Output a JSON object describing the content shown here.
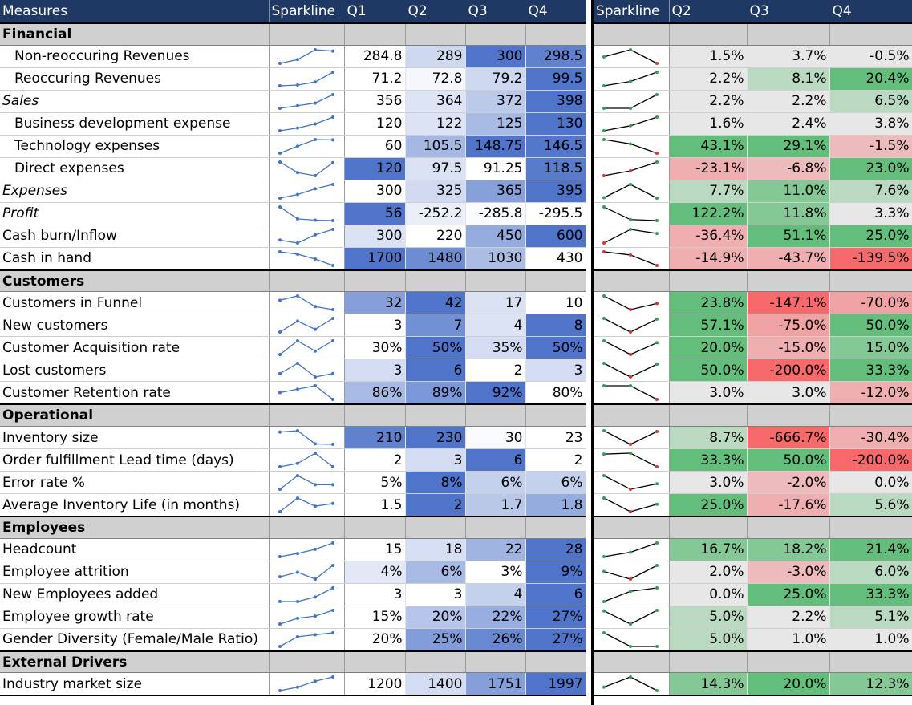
{
  "headers_left": [
    "Measures",
    "Sparkline",
    "Q1",
    "Q2",
    "Q3",
    "Q4"
  ],
  "headers_right": [
    "Sparkline",
    "Q2",
    "Q3",
    "Q4"
  ],
  "colors": {
    "header_bg": "#1f3864",
    "section_bg": "#d0d0d0",
    "blue_scale_low": "#ffffff",
    "blue_scale_high": "#4f74c9",
    "green_strong": "#63be7b",
    "red_strong": "#f8696b",
    "neutral": "#e7e7e7",
    "sparkline_line": "#4472c4",
    "sparkline_line_dark": "#000000",
    "marker_green": "#2e9e5b",
    "marker_red": "#e03030"
  },
  "sections": [
    {
      "name": "Financial",
      "rows": [
        {
          "label": "Non-reoccuring Revenues",
          "style": "indent",
          "q": [
            "284.8",
            "289",
            "300",
            "298.5"
          ],
          "v": [
            284.8,
            289,
            300,
            298.5
          ],
          "chg": [
            "1.5%",
            "3.7%",
            "-0.5%"
          ],
          "cv": [
            1.5,
            3.7,
            -0.5
          ]
        },
        {
          "label": "Reoccuring Revenues",
          "style": "indent",
          "q": [
            "71.2",
            "72.8",
            "79.2",
            "99.5"
          ],
          "v": [
            71.2,
            72.8,
            79.2,
            99.5
          ],
          "chg": [
            "2.2%",
            "8.1%",
            "20.4%"
          ],
          "cv": [
            2.2,
            8.1,
            20.4
          ]
        },
        {
          "label": "Sales",
          "style": "italic",
          "q": [
            "356",
            "364",
            "372",
            "398"
          ],
          "v": [
            356,
            364,
            372,
            398
          ],
          "chg": [
            "2.2%",
            "2.2%",
            "6.5%"
          ],
          "cv": [
            2.2,
            2.2,
            6.5
          ]
        },
        {
          "label": "Business development expense",
          "style": "indent",
          "q": [
            "120",
            "122",
            "125",
            "130"
          ],
          "v": [
            120,
            122,
            125,
            130
          ],
          "chg": [
            "1.6%",
            "2.4%",
            "3.8%"
          ],
          "cv": [
            1.6,
            2.4,
            3.8
          ]
        },
        {
          "label": "Technology expenses",
          "style": "indent",
          "q": [
            "60",
            "105.5",
            "148.75",
            "146.5"
          ],
          "v": [
            60,
            105.5,
            148.75,
            146.5
          ],
          "chg": [
            "43.1%",
            "29.1%",
            "-1.5%"
          ],
          "cv": [
            43.1,
            29.1,
            -1.5
          ]
        },
        {
          "label": "Direct expenses",
          "style": "indent",
          "q": [
            "120",
            "97.5",
            "91.25",
            "118.5"
          ],
          "v": [
            120,
            97.5,
            91.25,
            118.5
          ],
          "chg": [
            "-23.1%",
            "-6.8%",
            "23.0%"
          ],
          "cv": [
            -23.1,
            -6.8,
            23.0
          ]
        },
        {
          "label": "Expenses",
          "style": "italic",
          "q": [
            "300",
            "325",
            "365",
            "395"
          ],
          "v": [
            300,
            325,
            365,
            395
          ],
          "chg": [
            "7.7%",
            "11.0%",
            "7.6%"
          ],
          "cv": [
            7.7,
            11.0,
            7.6
          ]
        },
        {
          "label": "Profit",
          "style": "italic",
          "q": [
            "56",
            "-252.2",
            "-285.8",
            "-295.5"
          ],
          "v": [
            56,
            -252.2,
            -285.8,
            -295.5
          ],
          "chg": [
            "122.2%",
            "11.8%",
            "3.3%"
          ],
          "cv": [
            122.2,
            11.8,
            3.3
          ]
        },
        {
          "label": "Cash burn/Inflow",
          "style": "plain",
          "q": [
            "300",
            "220",
            "450",
            "600"
          ],
          "v": [
            300,
            220,
            450,
            600
          ],
          "chg": [
            "-36.4%",
            "51.1%",
            "25.0%"
          ],
          "cv": [
            -36.4,
            51.1,
            25.0
          ]
        },
        {
          "label": "Cash in hand",
          "style": "plain",
          "q": [
            "1700",
            "1480",
            "1030",
            "430"
          ],
          "v": [
            1700,
            1480,
            1030,
            430
          ],
          "chg": [
            "-14.9%",
            "-43.7%",
            "-139.5%"
          ],
          "cv": [
            -14.9,
            -43.7,
            -139.5
          ]
        }
      ]
    },
    {
      "name": "Customers",
      "rows": [
        {
          "label": "Customers in Funnel",
          "style": "plain",
          "q": [
            "32",
            "42",
            "17",
            "10"
          ],
          "v": [
            32,
            42,
            17,
            10
          ],
          "chg": [
            "23.8%",
            "-147.1%",
            "-70.0%"
          ],
          "cv": [
            23.8,
            -147.1,
            -70.0
          ]
        },
        {
          "label": "New customers",
          "style": "plain",
          "q": [
            "3",
            "7",
            "4",
            "8"
          ],
          "v": [
            3,
            7,
            4,
            8
          ],
          "chg": [
            "57.1%",
            "-75.0%",
            "50.0%"
          ],
          "cv": [
            57.1,
            -75.0,
            50.0
          ]
        },
        {
          "label": "Customer Acquisition rate",
          "style": "plain",
          "q": [
            "30%",
            "50%",
            "35%",
            "50%"
          ],
          "v": [
            30,
            50,
            35,
            50
          ],
          "chg": [
            "20.0%",
            "-15.0%",
            "15.0%"
          ],
          "cv": [
            20.0,
            -15.0,
            15.0
          ]
        },
        {
          "label": "Lost customers",
          "style": "plain",
          "q": [
            "3",
            "6",
            "2",
            "3"
          ],
          "v": [
            3,
            6,
            2,
            3
          ],
          "chg": [
            "50.0%",
            "-200.0%",
            "33.3%"
          ],
          "cv": [
            50.0,
            -200.0,
            33.3
          ]
        },
        {
          "label": "Customer Retention rate",
          "style": "plain",
          "q": [
            "86%",
            "89%",
            "92%",
            "80%"
          ],
          "v": [
            86,
            89,
            92,
            80
          ],
          "chg": [
            "3.0%",
            "3.0%",
            "-12.0%"
          ],
          "cv": [
            3.0,
            3.0,
            -12.0
          ]
        }
      ]
    },
    {
      "name": "Operational",
      "rows": [
        {
          "label": "Inventory size",
          "style": "plain",
          "q": [
            "210",
            "230",
            "30",
            "23"
          ],
          "v": [
            210,
            230,
            30,
            23
          ],
          "chg": [
            "8.7%",
            "-666.7%",
            "-30.4%"
          ],
          "cv": [
            8.7,
            -666.7,
            -30.4
          ]
        },
        {
          "label": "Order fulfillment Lead time (days)",
          "style": "plain",
          "q": [
            "2",
            "3",
            "6",
            "2"
          ],
          "v": [
            2,
            3,
            6,
            2
          ],
          "chg": [
            "33.3%",
            "50.0%",
            "-200.0%"
          ],
          "cv": [
            33.3,
            50.0,
            -200.0
          ]
        },
        {
          "label": "Error rate %",
          "style": "plain",
          "q": [
            "5%",
            "8%",
            "6%",
            "6%"
          ],
          "v": [
            5,
            8,
            6,
            6
          ],
          "chg": [
            "3.0%",
            "-2.0%",
            "0.0%"
          ],
          "cv": [
            3.0,
            -2.0,
            0.0
          ]
        },
        {
          "label": "Average Inventory Life (in months)",
          "style": "plain",
          "q": [
            "1.5",
            "2",
            "1.7",
            "1.8"
          ],
          "v": [
            1.5,
            2,
            1.7,
            1.8
          ],
          "chg": [
            "25.0%",
            "-17.6%",
            "5.6%"
          ],
          "cv": [
            25.0,
            -17.6,
            5.6
          ]
        }
      ]
    },
    {
      "name": "Employees",
      "rows": [
        {
          "label": "Headcount",
          "style": "plain",
          "q": [
            "15",
            "18",
            "22",
            "28"
          ],
          "v": [
            15,
            18,
            22,
            28
          ],
          "chg": [
            "16.7%",
            "18.2%",
            "21.4%"
          ],
          "cv": [
            16.7,
            18.2,
            21.4
          ]
        },
        {
          "label": "Employee attrition",
          "style": "plain",
          "q": [
            "4%",
            "6%",
            "3%",
            "9%"
          ],
          "v": [
            4,
            6,
            3,
            9
          ],
          "chg": [
            "2.0%",
            "-3.0%",
            "6.0%"
          ],
          "cv": [
            2.0,
            -3.0,
            6.0
          ]
        },
        {
          "label": "New Employees added",
          "style": "plain",
          "q": [
            "3",
            "3",
            "4",
            "6"
          ],
          "v": [
            3,
            3,
            4,
            6
          ],
          "chg": [
            "0.0%",
            "25.0%",
            "33.3%"
          ],
          "cv": [
            0.0,
            25.0,
            33.3
          ]
        },
        {
          "label": "Employee growth rate",
          "style": "plain",
          "q": [
            "15%",
            "20%",
            "22%",
            "27%"
          ],
          "v": [
            15,
            20,
            22,
            27
          ],
          "chg": [
            "5.0%",
            "2.2%",
            "5.1%"
          ],
          "cv": [
            5.0,
            2.2,
            5.1
          ]
        },
        {
          "label": "Gender Diversity (Female/Male Ratio)",
          "style": "plain",
          "q": [
            "20%",
            "25%",
            "26%",
            "27%"
          ],
          "v": [
            20,
            25,
            26,
            27
          ],
          "chg": [
            "5.0%",
            "1.0%",
            "1.0%"
          ],
          "cv": [
            5.0,
            1.0,
            1.0
          ]
        }
      ]
    },
    {
      "name": "External Drivers",
      "rows": [
        {
          "label": "Industry market size",
          "style": "plain",
          "q": [
            "1200",
            "1400",
            "1751",
            "1997"
          ],
          "v": [
            1200,
            1400,
            1751,
            1997
          ],
          "chg": [
            "14.3%",
            "20.0%",
            "12.3%"
          ],
          "cv": [
            14.3,
            20.0,
            12.3
          ]
        }
      ]
    }
  ]
}
